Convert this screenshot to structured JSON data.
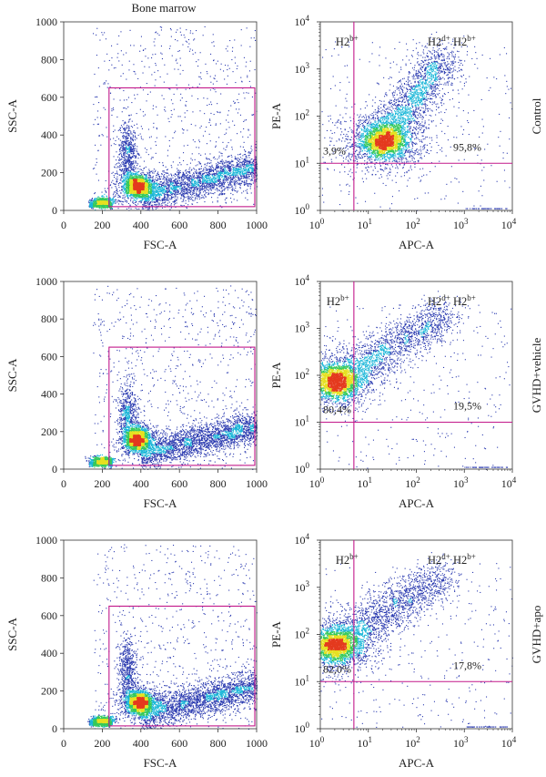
{
  "figure": {
    "column_title": "Bone marrow",
    "row_labels": [
      "Control",
      "GVHD+vehicle",
      "GVHD+apo"
    ]
  },
  "colors": {
    "gate": "#c2188a",
    "density_low": "#2b3bb0",
    "density_mid1": "#19b6d8",
    "density_mid2": "#35c95a",
    "density_mid3": "#e6e020",
    "density_high": "#e43a1e"
  },
  "chart_data": [
    {
      "type": "scatter",
      "panel": "control-fsc-ssc",
      "title": "Bone marrow",
      "xlabel": "FSC-A",
      "ylabel": "SSC-A",
      "xlim": [
        0,
        1000
      ],
      "ylim": [
        0,
        1000
      ],
      "xticks": [
        "0",
        "200",
        "400",
        "600",
        "800",
        "1000"
      ],
      "yticks": [
        "0",
        "200",
        "400",
        "600",
        "800",
        "1000"
      ],
      "gate": {
        "x": [
          235,
          1000
        ],
        "y": [
          20,
          650
        ]
      },
      "main_cluster": {
        "x": 380,
        "y": 130
      },
      "points": 7000
    },
    {
      "type": "scatter",
      "panel": "control-apc-pe",
      "xlabel": "APC-A",
      "ylabel": "PE-A",
      "xscale": "log",
      "yscale": "log",
      "xlim": [
        1,
        10000
      ],
      "ylim": [
        1,
        10000
      ],
      "xticks": [
        "10^0",
        "10^1",
        "10^2",
        "10^3",
        "10^4"
      ],
      "yticks": [
        "10^0",
        "10^1",
        "10^2",
        "10^3",
        "10^4"
      ],
      "quadrant_lines": {
        "x": 5,
        "y": 10
      },
      "quadrant_labels": {
        "left": "H2b+",
        "right": "H2d+ H2b+"
      },
      "quadrant_labels_sup": {
        "left_base": "H2",
        "left_sup": "b+",
        "right_base1": "H2",
        "right_sup1": "d+",
        "right_base2": "H2",
        "right_sup2": "b+"
      },
      "percent_left": "3,9%",
      "percent_right": "95,8%",
      "row_label": "Control",
      "main_cluster": {
        "x": 20,
        "y": 30
      }
    },
    {
      "type": "scatter",
      "panel": "vehicle-fsc-ssc",
      "xlabel": "FSC-A",
      "ylabel": "SSC-A",
      "xlim": [
        0,
        1000
      ],
      "ylim": [
        0,
        1000
      ],
      "xticks": [
        "0",
        "200",
        "400",
        "600",
        "800",
        "1000"
      ],
      "yticks": [
        "0",
        "200",
        "400",
        "600",
        "800",
        "1000"
      ],
      "gate": {
        "x": [
          235,
          1000
        ],
        "y": [
          20,
          650
        ]
      },
      "main_cluster": {
        "x": 380,
        "y": 160
      },
      "points": 7000
    },
    {
      "type": "scatter",
      "panel": "vehicle-apc-pe",
      "xlabel": "APC-A",
      "ylabel": "PE-A",
      "xscale": "log",
      "yscale": "log",
      "xlim": [
        1,
        10000
      ],
      "ylim": [
        1,
        10000
      ],
      "xticks": [
        "10^0",
        "10^1",
        "10^2",
        "10^3",
        "10^4"
      ],
      "yticks": [
        "10^0",
        "10^1",
        "10^2",
        "10^3",
        "10^4"
      ],
      "quadrant_lines": {
        "x": 5,
        "y": 10
      },
      "quadrant_labels": {
        "left": "H2b+",
        "right": "H2d+ H2b+"
      },
      "quadrant_labels_sup": {
        "left_base": "H2",
        "left_sup": "b+",
        "right_base1": "H2",
        "right_sup1": "d+",
        "right_base2": "H2",
        "right_sup2": "b+"
      },
      "percent_left": "80,4%",
      "percent_right": "19,5%",
      "row_label": "GVHD+vehicle",
      "main_cluster": {
        "x": 2,
        "y": 75
      }
    },
    {
      "type": "scatter",
      "panel": "apo-fsc-ssc",
      "xlabel": "FSC-A",
      "ylabel": "SSC-A",
      "xlim": [
        0,
        1000
      ],
      "ylim": [
        0,
        1000
      ],
      "xticks": [
        "0",
        "200",
        "400",
        "600",
        "800",
        "1000"
      ],
      "yticks": [
        "0",
        "200",
        "400",
        "600",
        "800",
        "1000"
      ],
      "gate": {
        "x": [
          235,
          1000
        ],
        "y": [
          15,
          650
        ]
      },
      "main_cluster": {
        "x": 390,
        "y": 140
      },
      "points": 7000
    },
    {
      "type": "scatter",
      "panel": "apo-apc-pe",
      "xlabel": "APC-A",
      "ylabel": "PE-A",
      "xscale": "log",
      "yscale": "log",
      "xlim": [
        1,
        10000
      ],
      "ylim": [
        1,
        10000
      ],
      "xticks": [
        "10^0",
        "10^1",
        "10^2",
        "10^3",
        "10^4"
      ],
      "yticks": [
        "10^0",
        "10^1",
        "10^2",
        "10^3",
        "10^4"
      ],
      "quadrant_lines": {
        "x": 5,
        "y": 10
      },
      "quadrant_labels": {
        "left": "H2b+",
        "right": "H2d+ H2b+"
      },
      "quadrant_labels_sup": {
        "left_base": "H2",
        "left_sup": "b+",
        "right_base1": "H2",
        "right_sup1": "d+",
        "right_base2": "H2",
        "right_sup2": "b+"
      },
      "percent_left": "82,0%",
      "percent_right": "17,8%",
      "row_label": "GVHD+apo",
      "main_cluster": {
        "x": 2,
        "y": 60
      }
    }
  ]
}
